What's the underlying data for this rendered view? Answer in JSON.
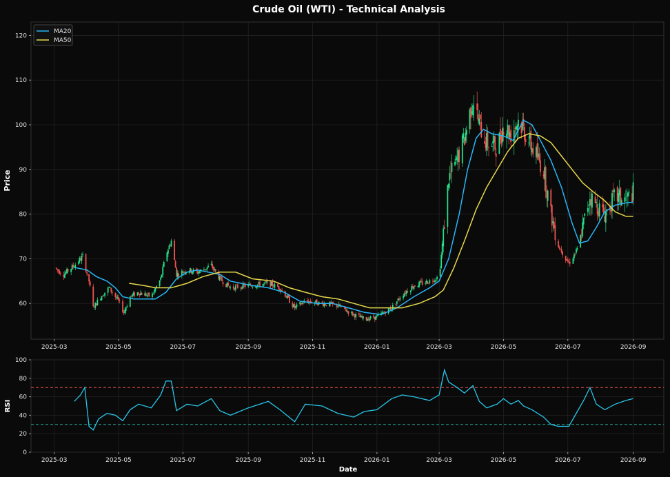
{
  "chart_data": [
    {
      "type": "candlestick",
      "title": "Crude Oil (WTI) - Technical Analysis",
      "ylabel": "Price",
      "ylim": [
        52,
        123
      ],
      "xlim": [
        "2025-02-07",
        "2026-09-30"
      ],
      "yticks": [
        60,
        70,
        80,
        90,
        100,
        110,
        120
      ],
      "xticks": [
        "2025-03",
        "2025-05",
        "2025-07",
        "2025-09",
        "2025-11",
        "2026-01",
        "2026-03",
        "2026-05",
        "2026-07",
        "2026-09"
      ],
      "grid": true,
      "legend_position": "top-left",
      "up_color": "#26e08a",
      "down_color": "#ef5350",
      "price_path": [
        [
          "2025-03-01",
          68
        ],
        [
          "2025-03-10",
          66.5
        ],
        [
          "2025-03-20",
          68.5
        ],
        [
          "2025-03-28",
          70.5
        ],
        [
          "2025-04-03",
          65
        ],
        [
          "2025-04-07",
          59
        ],
        [
          "2025-04-14",
          61.5
        ],
        [
          "2025-04-22",
          63.5
        ],
        [
          "2025-05-01",
          60.5
        ],
        [
          "2025-05-06",
          58
        ],
        [
          "2025-05-12",
          61.5
        ],
        [
          "2025-05-20",
          62.5
        ],
        [
          "2025-06-01",
          61.5
        ],
        [
          "2025-06-10",
          65.5
        ],
        [
          "2025-06-15",
          71
        ],
        [
          "2025-06-20",
          74
        ],
        [
          "2025-06-25",
          66.5
        ],
        [
          "2025-07-05",
          67.5
        ],
        [
          "2025-07-15",
          67
        ],
        [
          "2025-07-28",
          68.5
        ],
        [
          "2025-08-05",
          65.5
        ],
        [
          "2025-08-15",
          63.5
        ],
        [
          "2025-09-01",
          64
        ],
        [
          "2025-09-20",
          64.5
        ],
        [
          "2025-10-01",
          63.5
        ],
        [
          "2025-10-15",
          59
        ],
        [
          "2025-10-25",
          60.5
        ],
        [
          "2025-11-10",
          60
        ],
        [
          "2025-11-25",
          59.5
        ],
        [
          "2025-12-10",
          57.5
        ],
        [
          "2025-12-20",
          56.5
        ],
        [
          "2026-01-01",
          57
        ],
        [
          "2026-01-15",
          59
        ],
        [
          "2026-01-25",
          62
        ],
        [
          "2026-02-05",
          64
        ],
        [
          "2026-02-20",
          65
        ],
        [
          "2026-03-01",
          66
        ],
        [
          "2026-03-06",
          78
        ],
        [
          "2026-03-10",
          88
        ],
        [
          "2026-03-18",
          92
        ],
        [
          "2026-03-25",
          97
        ],
        [
          "2026-04-02",
          106
        ],
        [
          "2026-04-08",
          100
        ],
        [
          "2026-04-15",
          96
        ],
        [
          "2026-04-25",
          95
        ],
        [
          "2026-05-01",
          100
        ],
        [
          "2026-05-08",
          98
        ],
        [
          "2026-05-15",
          101
        ],
        [
          "2026-05-20",
          99
        ],
        [
          "2026-05-28",
          95
        ],
        [
          "2026-06-08",
          90
        ],
        [
          "2026-06-15",
          80
        ],
        [
          "2026-06-22",
          73
        ],
        [
          "2026-07-02",
          69
        ],
        [
          "2026-07-10",
          72
        ],
        [
          "2026-07-16",
          78
        ],
        [
          "2026-07-22",
          84
        ],
        [
          "2026-07-28",
          82
        ],
        [
          "2026-08-05",
          80
        ],
        [
          "2026-08-15",
          84
        ],
        [
          "2026-08-25",
          83
        ],
        [
          "2026-09-01",
          85
        ]
      ],
      "series": [
        {
          "name": "MA20",
          "color": "#29b6f6",
          "points": [
            [
              "2025-03-21",
              68
            ],
            [
              "2025-04-01",
              67.5
            ],
            [
              "2025-04-10",
              66
            ],
            [
              "2025-04-20",
              65
            ],
            [
              "2025-04-28",
              63.5
            ],
            [
              "2025-05-05",
              61.5
            ],
            [
              "2025-05-15",
              61
            ],
            [
              "2025-05-25",
              61
            ],
            [
              "2025-06-05",
              61
            ],
            [
              "2025-06-15",
              62.5
            ],
            [
              "2025-06-25",
              65.5
            ],
            [
              "2025-07-05",
              67
            ],
            [
              "2025-07-15",
              67.5
            ],
            [
              "2025-07-25",
              67
            ],
            [
              "2025-08-05",
              66.5
            ],
            [
              "2025-08-15",
              65
            ],
            [
              "2025-08-25",
              64.5
            ],
            [
              "2025-09-05",
              64
            ],
            [
              "2025-09-20",
              63.5
            ],
            [
              "2025-10-05",
              62.5
            ],
            [
              "2025-10-20",
              60.5
            ],
            [
              "2025-11-05",
              60
            ],
            [
              "2025-11-20",
              60
            ],
            [
              "2025-12-05",
              59
            ],
            [
              "2025-12-20",
              58
            ],
            [
              "2026-01-05",
              57.5
            ],
            [
              "2026-01-20",
              59
            ],
            [
              "2026-02-05",
              61.5
            ],
            [
              "2026-02-20",
              63.5
            ],
            [
              "2026-03-01",
              65
            ],
            [
              "2026-03-10",
              70
            ],
            [
              "2026-03-20",
              80
            ],
            [
              "2026-03-28",
              90
            ],
            [
              "2026-04-05",
              97
            ],
            [
              "2026-04-12",
              99
            ],
            [
              "2026-04-20",
              98
            ],
            [
              "2026-05-01",
              97.5
            ],
            [
              "2026-05-10",
              96.5
            ],
            [
              "2026-05-20",
              101
            ],
            [
              "2026-05-28",
              100
            ],
            [
              "2026-06-05",
              96.5
            ],
            [
              "2026-06-15",
              92
            ],
            [
              "2026-06-25",
              86
            ],
            [
              "2026-07-05",
              78
            ],
            [
              "2026-07-12",
              73.5
            ],
            [
              "2026-07-20",
              74
            ],
            [
              "2026-07-28",
              77
            ],
            [
              "2026-08-05",
              80.5
            ],
            [
              "2026-08-15",
              82
            ],
            [
              "2026-08-25",
              82.5
            ],
            [
              "2026-09-01",
              82.7
            ]
          ]
        },
        {
          "name": "MA50",
          "color": "#e6d94c",
          "points": [
            [
              "2025-05-11",
              64.5
            ],
            [
              "2025-05-25",
              64
            ],
            [
              "2025-06-05",
              63.5
            ],
            [
              "2025-06-20",
              63.5
            ],
            [
              "2025-07-05",
              64.5
            ],
            [
              "2025-07-20",
              66
            ],
            [
              "2025-08-05",
              67
            ],
            [
              "2025-08-20",
              67
            ],
            [
              "2025-09-05",
              65.5
            ],
            [
              "2025-09-25",
              65
            ],
            [
              "2025-10-10",
              63.5
            ],
            [
              "2025-10-25",
              62.5
            ],
            [
              "2025-11-10",
              61.5
            ],
            [
              "2025-11-25",
              61
            ],
            [
              "2025-12-10",
              60
            ],
            [
              "2025-12-25",
              59
            ],
            [
              "2026-01-10",
              59
            ],
            [
              "2026-01-25",
              59
            ],
            [
              "2026-02-10",
              60
            ],
            [
              "2026-02-25",
              61.5
            ],
            [
              "2026-03-05",
              63
            ],
            [
              "2026-03-15",
              68
            ],
            [
              "2026-03-25",
              74
            ],
            [
              "2026-04-05",
              81
            ],
            [
              "2026-04-15",
              86
            ],
            [
              "2026-04-25",
              90
            ],
            [
              "2026-05-05",
              94
            ],
            [
              "2026-05-15",
              97
            ],
            [
              "2026-05-25",
              98
            ],
            [
              "2026-06-05",
              97.5
            ],
            [
              "2026-06-15",
              96
            ],
            [
              "2026-06-25",
              93
            ],
            [
              "2026-07-05",
              90
            ],
            [
              "2026-07-15",
              87
            ],
            [
              "2026-07-25",
              85
            ],
            [
              "2026-08-05",
              83
            ],
            [
              "2026-08-15",
              80.5
            ],
            [
              "2026-08-25",
              79.5
            ],
            [
              "2026-09-01",
              79.5
            ]
          ]
        }
      ]
    },
    {
      "type": "line",
      "ylabel": "RSI",
      "xlabel": "Date",
      "ylim": [
        0,
        100
      ],
      "yticks": [
        0,
        20,
        40,
        60,
        80,
        100
      ],
      "xticks": [
        "2025-03",
        "2025-05",
        "2025-07",
        "2025-09",
        "2025-11",
        "2026-01",
        "2026-03",
        "2026-05",
        "2026-07",
        "2026-09"
      ],
      "overbought": 70,
      "oversold": 30,
      "overbought_color": "#ef5350",
      "oversold_color": "#26a69a",
      "line_color": "#29c7ea",
      "points": [
        [
          "2025-03-20",
          55
        ],
        [
          "2025-03-26",
          62
        ],
        [
          "2025-03-30",
          70
        ],
        [
          "2025-04-03",
          28
        ],
        [
          "2025-04-07",
          24
        ],
        [
          "2025-04-12",
          36
        ],
        [
          "2025-04-20",
          42
        ],
        [
          "2025-04-28",
          40
        ],
        [
          "2025-05-05",
          34
        ],
        [
          "2025-05-12",
          46
        ],
        [
          "2025-05-20",
          52
        ],
        [
          "2025-06-01",
          48
        ],
        [
          "2025-06-10",
          62
        ],
        [
          "2025-06-15",
          77
        ],
        [
          "2025-06-20",
          77
        ],
        [
          "2025-06-25",
          45
        ],
        [
          "2025-07-05",
          52
        ],
        [
          "2025-07-15",
          50
        ],
        [
          "2025-07-28",
          58
        ],
        [
          "2025-08-05",
          45
        ],
        [
          "2025-08-15",
          40
        ],
        [
          "2025-09-01",
          48
        ],
        [
          "2025-09-20",
          55
        ],
        [
          "2025-10-01",
          46
        ],
        [
          "2025-10-15",
          33
        ],
        [
          "2025-10-25",
          52
        ],
        [
          "2025-11-10",
          50
        ],
        [
          "2025-11-25",
          42
        ],
        [
          "2025-12-10",
          38
        ],
        [
          "2025-12-20",
          44
        ],
        [
          "2026-01-01",
          46
        ],
        [
          "2026-01-15",
          58
        ],
        [
          "2026-01-25",
          62
        ],
        [
          "2026-02-05",
          60
        ],
        [
          "2026-02-20",
          56
        ],
        [
          "2026-03-01",
          62
        ],
        [
          "2026-03-06",
          89
        ],
        [
          "2026-03-10",
          76
        ],
        [
          "2026-03-18",
          70
        ],
        [
          "2026-03-25",
          64
        ],
        [
          "2026-04-02",
          72
        ],
        [
          "2026-04-08",
          55
        ],
        [
          "2026-04-15",
          48
        ],
        [
          "2026-04-25",
          52
        ],
        [
          "2026-05-01",
          58
        ],
        [
          "2026-05-08",
          52
        ],
        [
          "2026-05-15",
          56
        ],
        [
          "2026-05-20",
          50
        ],
        [
          "2026-05-28",
          46
        ],
        [
          "2026-06-08",
          38
        ],
        [
          "2026-06-15",
          30
        ],
        [
          "2026-06-22",
          28
        ],
        [
          "2026-07-02",
          28
        ],
        [
          "2026-07-10",
          44
        ],
        [
          "2026-07-16",
          56
        ],
        [
          "2026-07-22",
          70
        ],
        [
          "2026-07-28",
          52
        ],
        [
          "2026-08-05",
          46
        ],
        [
          "2026-08-15",
          52
        ],
        [
          "2026-08-25",
          56
        ],
        [
          "2026-09-01",
          58
        ]
      ]
    }
  ]
}
